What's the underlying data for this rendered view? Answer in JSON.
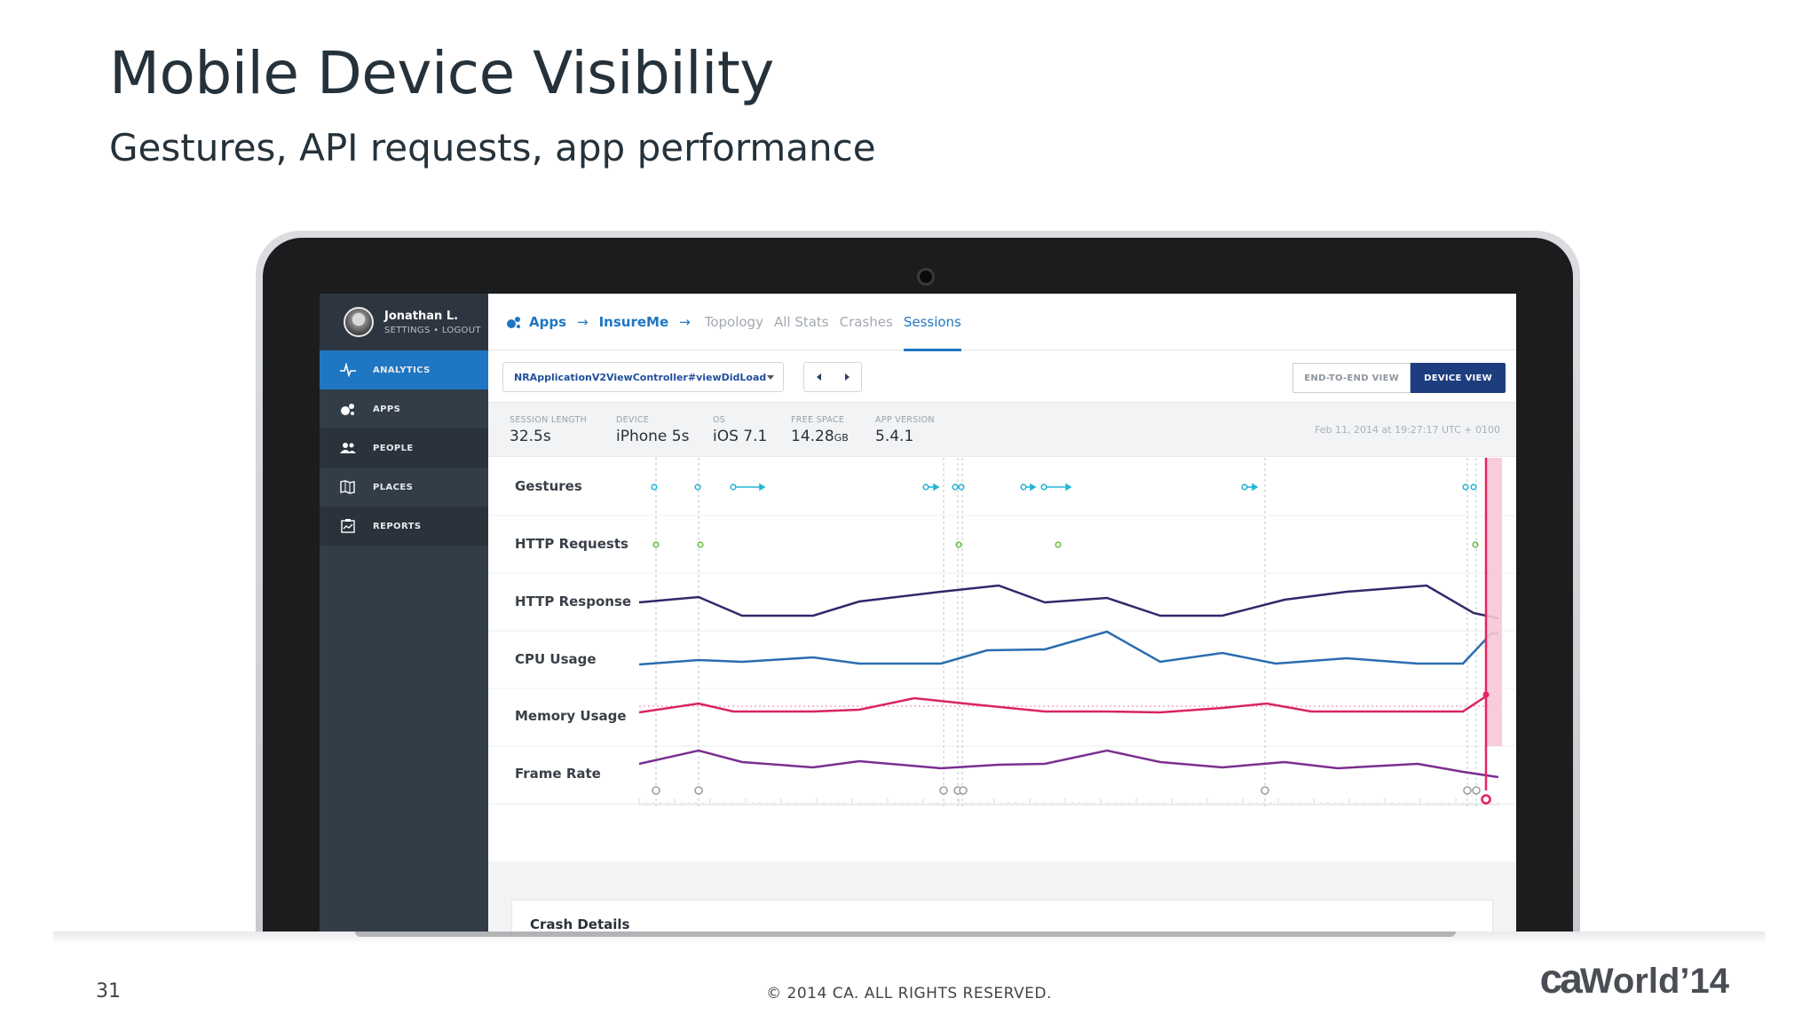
{
  "slide": {
    "title": "Mobile Device Visibility",
    "subtitle": "Gestures, API requests, app performance",
    "page_number": "31",
    "copyright": "© 2014 CA. ALL RIGHTS RESERVED.",
    "logo": {
      "ca": "ca",
      "world": "World",
      "year": "’14"
    }
  },
  "app": {
    "user": {
      "name": "Jonathan L.",
      "settings": "SETTINGS",
      "separator": "•",
      "logout": "LOGOUT"
    },
    "sidebar": [
      {
        "label": "ANALYTICS",
        "icon": "pulse-icon",
        "active": true
      },
      {
        "label": "APPS",
        "icon": "apps-icon"
      },
      {
        "label": "PEOPLE",
        "icon": "people-icon"
      },
      {
        "label": "PLACES",
        "icon": "places-icon"
      },
      {
        "label": "REPORTS",
        "icon": "reports-icon"
      }
    ],
    "breadcrumb": {
      "apps": "Apps",
      "arrow": "→",
      "app": "InsureMe",
      "arrow2": "→"
    },
    "tabs": [
      "Topology",
      "All Stats",
      "Crashes",
      "Sessions"
    ],
    "active_tab": "Sessions",
    "selector": {
      "value": "NRApplicationV2ViewController#viewDidLoad"
    },
    "view_toggle": {
      "end_to_end": "END-TO-END VIEW",
      "device": "DEVICE VIEW"
    },
    "stats": [
      {
        "label": "SESSION LENGTH",
        "value": "32.5s"
      },
      {
        "label": "DEVICE",
        "value": "iPhone 5s"
      },
      {
        "label": "OS",
        "value": "iOS 7.1"
      },
      {
        "label": "FREE SPACE",
        "value": "14.28",
        "unit": "GB"
      },
      {
        "label": "APP VERSION",
        "value": "5.4.1"
      }
    ],
    "timestamp": "Feb 11, 2014 at 19:27:17 UTC + 0100",
    "rows": [
      "Gestures",
      "HTTP Requests",
      "HTTP Response",
      "CPU Usage",
      "Memory Usage",
      "Frame Rate"
    ],
    "crash_details": "Crash Details",
    "colors": {
      "accent": "#1f76c2",
      "navy": "#1d3d7f",
      "gesture": "#25b5d6",
      "request": "#6bbf4a",
      "http_response": "#2e2a6b",
      "cpu": "#2a6db0",
      "memory": "#d9245f",
      "frame_rate": "#7a2f8f",
      "cursor": "#e6245f"
    }
  }
}
